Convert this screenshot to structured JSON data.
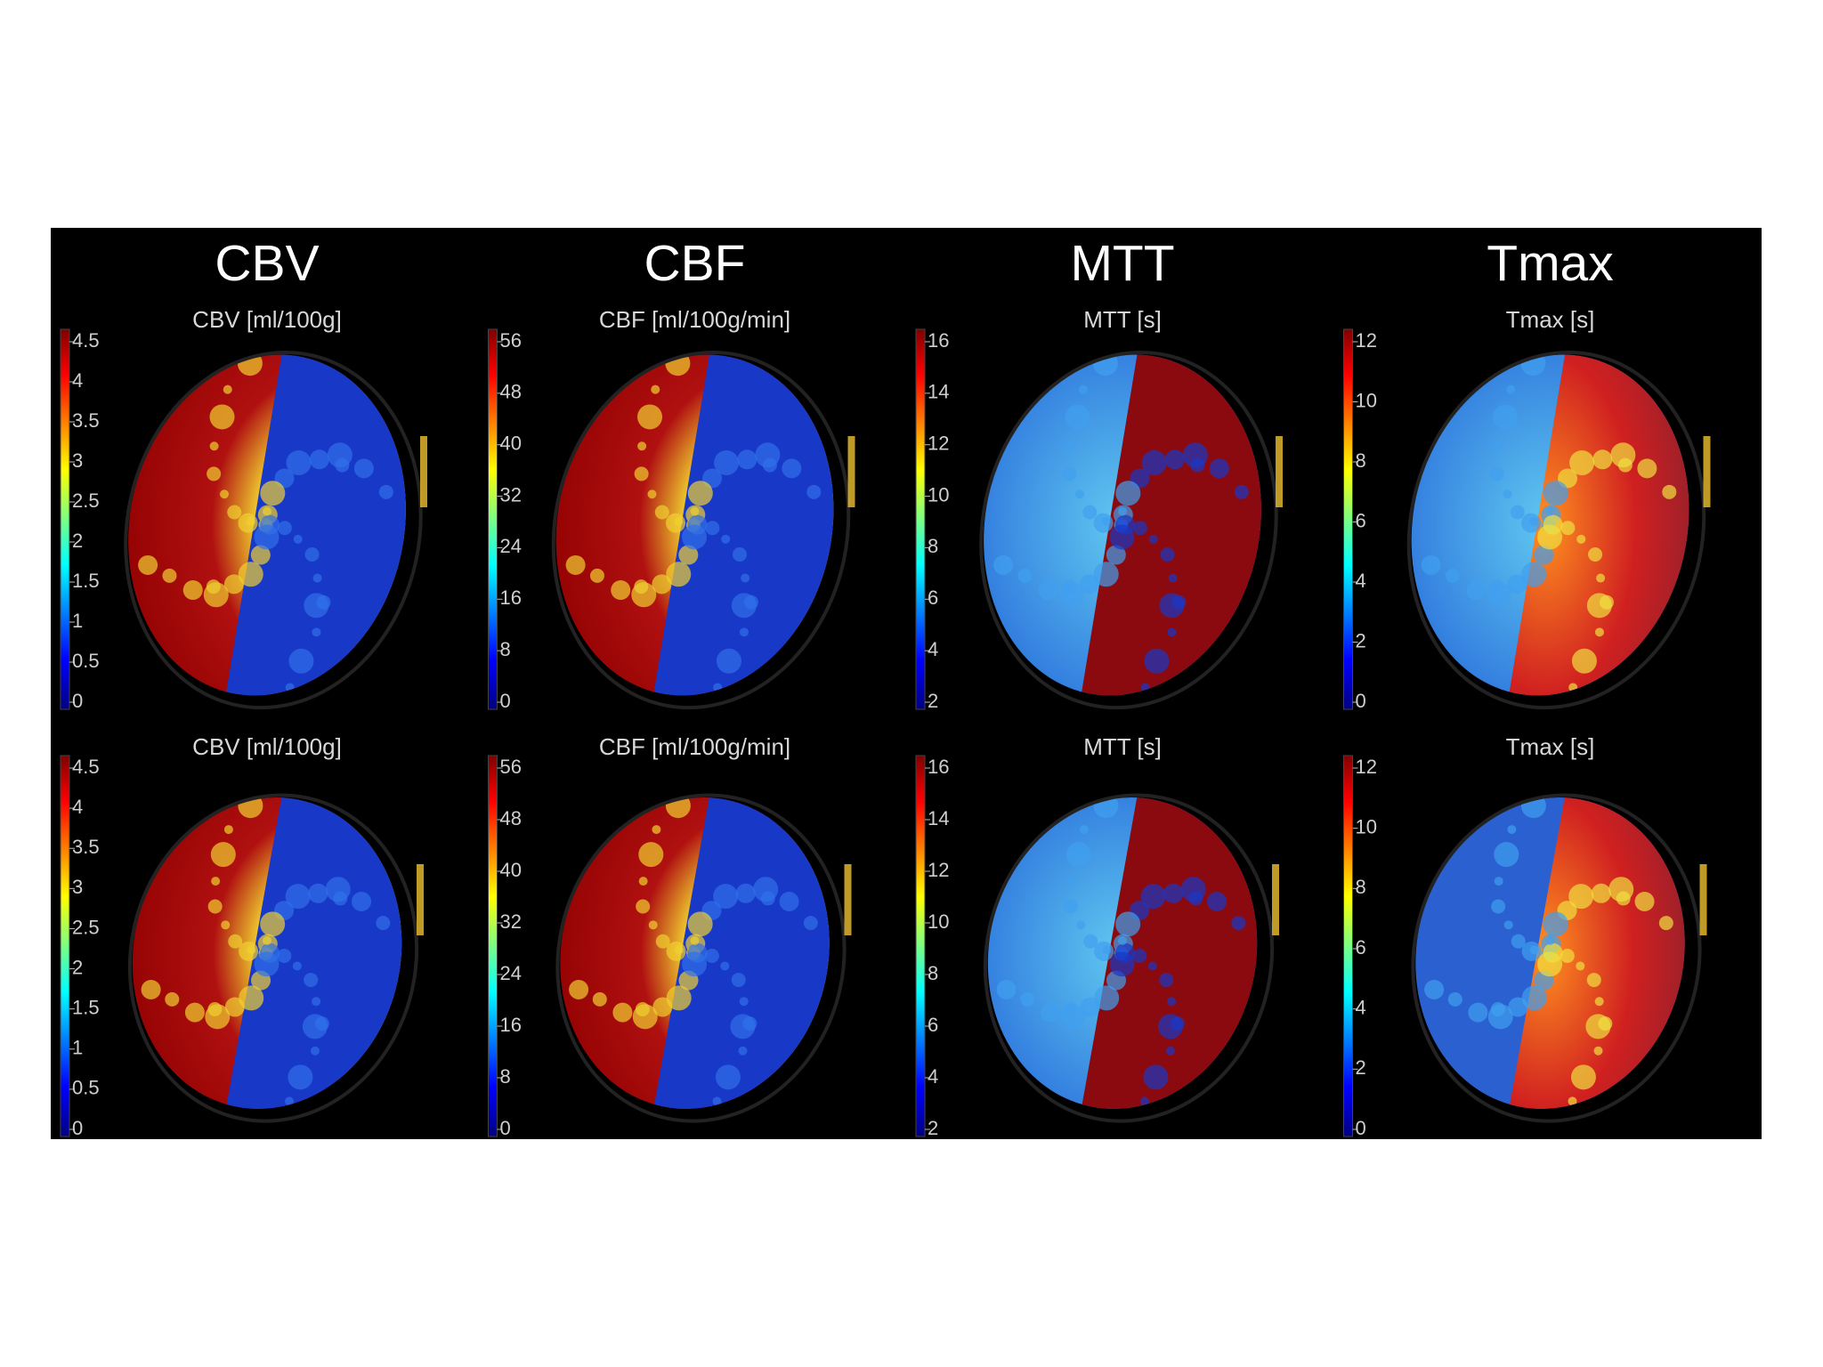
{
  "columns": [
    {
      "title": "CBV",
      "rows": [
        {
          "label": "CBV [ml/100g]",
          "colorbar_ticks": [
            4.5,
            4,
            3.5,
            3,
            2.5,
            2,
            1.5,
            1,
            0.5,
            0
          ]
        },
        {
          "label": "CBV [ml/100g]",
          "colorbar_ticks": [
            4.5,
            4,
            3.5,
            3,
            2.5,
            2,
            1.5,
            1,
            0.5,
            0
          ]
        }
      ]
    },
    {
      "title": "CBF",
      "rows": [
        {
          "label": "CBF [ml/100g/min]",
          "colorbar_ticks": [
            56,
            48,
            40,
            32,
            24,
            16,
            8,
            0
          ]
        },
        {
          "label": "CBF [ml/100g/min]",
          "colorbar_ticks": [
            56,
            48,
            40,
            32,
            24,
            16,
            8,
            0
          ]
        }
      ]
    },
    {
      "title": "MTT",
      "rows": [
        {
          "label": "MTT [s]",
          "colorbar_ticks": [
            16,
            14,
            12,
            10,
            8,
            6,
            4,
            2
          ]
        },
        {
          "label": "MTT [s]",
          "colorbar_ticks": [
            16,
            14,
            12,
            10,
            8,
            6,
            4,
            2
          ]
        }
      ]
    },
    {
      "title": "Tmax",
      "rows": [
        {
          "label": "Tmax [s]",
          "colorbar_ticks": [
            12,
            10,
            8,
            6,
            4,
            2,
            0
          ]
        },
        {
          "label": "Tmax [s]",
          "colorbar_ticks": [
            12,
            10,
            8,
            6,
            4,
            2,
            0
          ]
        }
      ]
    }
  ]
}
